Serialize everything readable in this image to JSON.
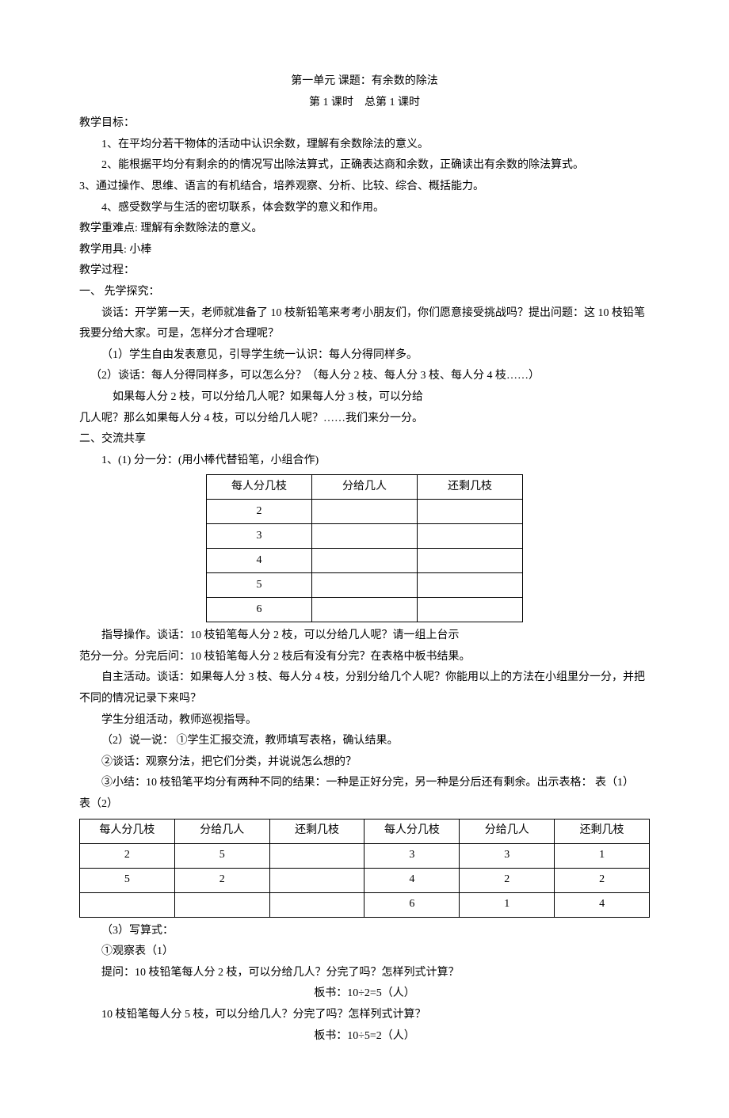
{
  "title1": "第一单元 课题：有余数的除法",
  "title2": "第 1 课时　总第 1 课时",
  "sec_goal": "教学目标：",
  "goal1": "1、在平均分若干物体的活动中认识余数，理解有余数除法的意义。",
  "goal2": "2、能根据平均分有剩余的的情况写出除法算式，正确表达商和余数，正确读出有余数的除法算式。",
  "goal3": "3、通过操作、思维、语言的有机结合，培养观察、分析、比较、综合、概括能力。",
  "goal4": "4、感受数学与生活的密切联系，体会数学的意义和作用。",
  "sec_diff": "教学重难点: 理解有余数除法的意义。",
  "sec_tool": "教学用具: 小棒",
  "sec_proc": "教学过程：",
  "sec1": "一、 先学探究：",
  "p1a": "谈话：开学第一天，老师就准备了 10 枝新铅笔来考考小朋友们，你们愿意接受挑战吗？提出问题：这 10 枝铅笔我要分给大家。可是，怎样分才合理呢？",
  "p1b": "（1）学生自由发表意见，引导学生统一认识：每人分得同样多。",
  "p1c": "（2）谈话：每人分得同样多，可以怎么分？（每人分 2 枝、每人分 3 枝、每人分 4 枝……）",
  "p1d": "如果每人分 2 枝，可以分给几人呢？如果每人分 3 枝，可以分给",
  "p1e": "几人呢？那么如果每人分 4 枝，可以分给几人呢？……我们来分一分。",
  "sec2": "二、交流共享",
  "p2a": "1、(1) 分一分：(用小棒代替铅笔，小组合作)",
  "table1": {
    "headers": [
      "每人分几枝",
      "分给几人",
      "还剩几枝"
    ],
    "rows": [
      [
        "2",
        "",
        ""
      ],
      [
        "3",
        "",
        ""
      ],
      [
        "4",
        "",
        ""
      ],
      [
        "5",
        "",
        ""
      ],
      [
        "6",
        "",
        ""
      ]
    ]
  },
  "p2b": "指导操作。谈话：10 枝铅笔每人分 2 枝，可以分给几人呢？请一组上台示",
  "p2c": "范分一分。分完后问：10 枝铅笔每人分 2 枝后有没有分完？在表格中板书结果。",
  "p2d": "自主活动。谈话：如果每人分 3 枝、每人分 4 枝，分别分给几个人呢？你能用以上的方法在小组里分一分，并把不同的情况记录下来吗？",
  "p2e": "学生分组活动，教师巡视指导。",
  "p2f": "（2）说一说：  ①学生汇报交流，教师填写表格，确认结果。",
  "p2g": "②谈话：观察分法，把它们分类，并说说怎么想的？",
  "p2h": "③小结：10 枝铅笔平均分有两种不同的结果：一种是正好分完，另一种是分后还有剩余。出示表格：  表（1）　　　　　　　　　　　　　　表（2）",
  "table2": {
    "headers": [
      "每人分几枝",
      "分给几人",
      "还剩几枝",
      "每人分几枝",
      "分给几人",
      "还剩几枝"
    ],
    "rows": [
      [
        "2",
        "5",
        "",
        "3",
        "3",
        "1"
      ],
      [
        "5",
        "2",
        "",
        "4",
        "2",
        "2"
      ],
      [
        "",
        "",
        "",
        "6",
        "1",
        "4"
      ]
    ]
  },
  "p3a": "（3）写算式：",
  "p3b": "①观察表（1）",
  "p3c": "提问：10 枝铅笔每人分 2 枝，可以分给几人？分完了吗？怎样列式计算？",
  "p3d": "板书：10÷2=5（人）",
  "p3e": "10 枝铅笔每人分 5 枝，可以分给几人？分完了吗？怎样列式计算？",
  "p3f": "板书：10÷5=2（人）"
}
